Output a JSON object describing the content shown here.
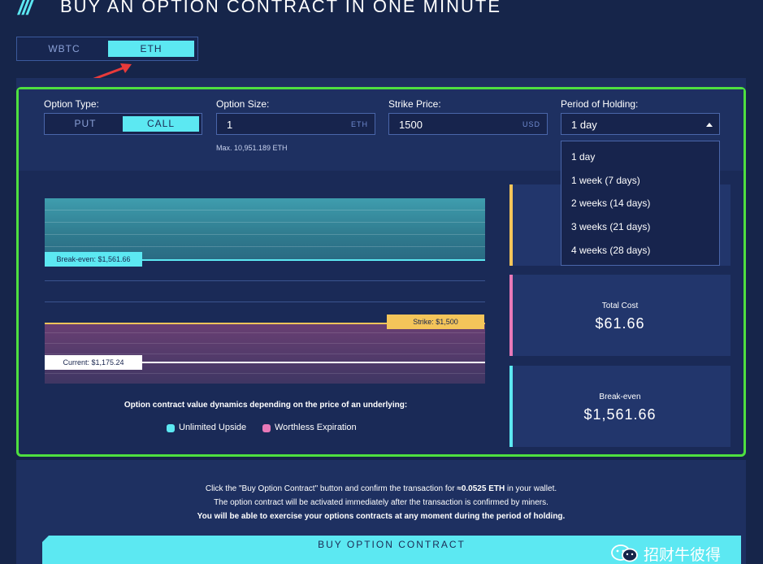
{
  "header": {
    "title": "BUY AN OPTION CONTRACT IN ONE MINUTE"
  },
  "asset_toggle": {
    "options": [
      "WBTC",
      "ETH"
    ],
    "selected": "ETH"
  },
  "form": {
    "option_type": {
      "label": "Option Type:",
      "options": [
        "PUT",
        "CALL"
      ],
      "selected": "CALL"
    },
    "option_size": {
      "label": "Option Size:",
      "value": "1",
      "unit": "ETH",
      "max_text": "Max. 10,951.189 ETH"
    },
    "strike_price": {
      "label": "Strike Price:",
      "value": "1500",
      "unit": "USD"
    },
    "period": {
      "label": "Period of Holding:",
      "value": "1 day",
      "options": [
        "1 day",
        "1 week (7 days)",
        "2 weeks (14 days)",
        "3 weeks (21 days)",
        "4 weeks (28 days)"
      ]
    }
  },
  "chart": {
    "breakeven_label": "Break-even: $1,561.66",
    "strike_label": "Strike: $1,500",
    "current_label": "Current: $1,175.24",
    "caption": "Option contract value dynamics depending on the price of an underlying:",
    "legend": [
      {
        "label": "Unlimited Upside",
        "color": "#5ce8f2"
      },
      {
        "label": "Worthless Expiration",
        "color": "#e879b8"
      }
    ]
  },
  "stats": {
    "total_cost": {
      "label": "Total Cost",
      "value": "$61.66",
      "bar_color": "#e879b8"
    },
    "break_even": {
      "label": "Break-even",
      "value": "$1,561.66",
      "bar_color": "#5ce8f2"
    },
    "top_bar_color": "#f4c55a"
  },
  "notice": {
    "line1_a": "Click the \"Buy Option Contract\" button and confirm the transaction for ",
    "line1_b": "≈0.0525 ETH",
    "line1_c": " in your wallet.",
    "line2": "The option contract will be activated immediately after the transaction is confirmed by miners.",
    "line3": "You will be able to exercise your options contracts at any moment during the period of holding."
  },
  "buy_button": {
    "label": "BUY OPTION CONTRACT"
  },
  "watermark": {
    "text": "招财牛彼得"
  },
  "colors": {
    "accent": "#5ce8f2",
    "highlight_border": "#4ee03f",
    "strike": "#f4c55a"
  }
}
